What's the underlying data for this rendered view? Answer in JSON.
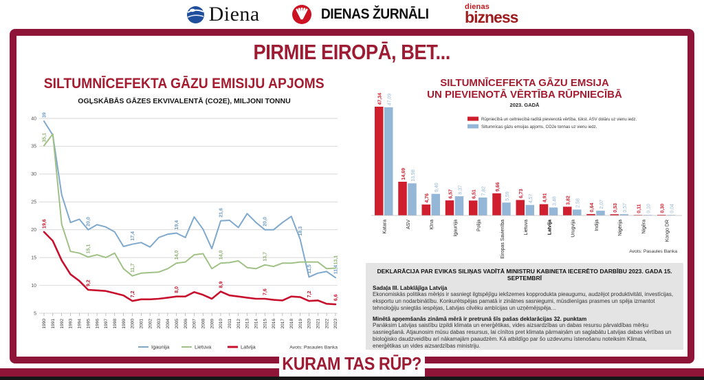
{
  "page": {
    "main_title": "PIRMIE EIROPĀ, BET...",
    "footer_title": "KURAM TAS RŪP?"
  },
  "header": {
    "diena": "Diena",
    "zurnali": "DIENAS ŽURNĀLI",
    "bizness_top": "dienas",
    "bizness_bottom": "bizness"
  },
  "declaration": {
    "heading": "DEKLARĀCIJA PAR EVIKAS SILIŅAS VADĪTĀ MINISTRU KABINETA IECERĒTO DARBĪBU 2023. GADA 15. SEPTEMBRĪ",
    "section1_title": "Sadaļa III. Labklājīga Latvija",
    "section1_body": "Ekonomiskās politikas mērķis ir sasniegt ilgtspējīgu iekšzemes kopprodukta pieaugumu, audzējot produktivitāti, investīcijas, eksportu un nodarbinātību. Konkurētspējas pamatā ir zinātnes sasniegumi, mūsdienīgas prasmes un spēja izmantot tehnoloģiju sniegtās iespējas, Latvijas cilvēku ambīcijas un uzņēmējspēja…",
    "section2_title": "Minētā apņemšanās zināmā mērā ir pretrunā šīs pašas deklarācijas 32. punktam",
    "section2_body": "Panāksim Latvijas saistību izpildi klimata un enerģētikas, vides aizsardzības un dabas resursu pārvaldības mērķu sasniegšanā. Atjaunosim mūsu dabas resursus, lai cīnītos pret klimata pārmaiņām un saglabātu Latvijas dabas vērtības un bioloģisko daudzveidību arī nākamajām paaudzēm. Kā atbildīgo par šo uzdevumu īstenošanu noteiksim Klimata, enerģētikas un vides aizsardzības ministriju."
  },
  "colors": {
    "frame": "#8e1537",
    "title_red": "#a51c30",
    "line_blue": "#7fa8cd",
    "line_green": "#a0c186",
    "line_red": "#c8102e",
    "bar_red": "#cf1f2f",
    "bar_blue": "#95b7d7",
    "grid": "#c9c9c9",
    "box_bg": "#e4e4e4",
    "black_strip": "#161616"
  },
  "chart_data": [
    {
      "type": "line",
      "title": "SILTUMNĪCEFEKTA GĀZU EMISIJU APJOMS",
      "subtitle": "OGĻSKĀBĀS GĀZES EKVIVALENTĀ (CO2E), MILJONI  TONNU",
      "source": "Avots: Pasaules Banka",
      "grid": true,
      "legend_position": "bottom",
      "ylim": [
        5,
        40
      ],
      "ytick_step": 5,
      "x": [
        1990,
        1991,
        1992,
        1993,
        1994,
        1995,
        1996,
        1997,
        1998,
        1999,
        2000,
        2001,
        2002,
        2003,
        2004,
        2005,
        2006,
        2007,
        2008,
        2009,
        2010,
        2011,
        2012,
        2013,
        2014,
        2015,
        2016,
        2017,
        2018,
        2019,
        2020,
        2021,
        2022,
        2023
      ],
      "series": [
        {
          "name": "Igaunija",
          "color": "#7fa8cd",
          "label_color": "#6d9cc4",
          "width": 2,
          "values": [
            39.5,
            37.0,
            26.3,
            21.3,
            21.9,
            20.0,
            20.9,
            20.5,
            19.6,
            17.0,
            17.4,
            17.7,
            16.9,
            18.6,
            19.2,
            19.4,
            18.6,
            22.3,
            20.1,
            16.6,
            21.6,
            21.7,
            20.4,
            22.9,
            21.3,
            20.0,
            20.0,
            21.3,
            22.4,
            18.3,
            11.5,
            12.2,
            12.5,
            11.4
          ],
          "labeled": {
            "1990": "39,5",
            "1995": "20,0",
            "2000": "17,4",
            "2005": "19,4",
            "2010": "21,6",
            "2015": "20,0",
            "2019": "18,3",
            "2020": "11,5",
            "2023": "11,4"
          }
        },
        {
          "name": "Lietuva",
          "color": "#a0c186",
          "label_color": "#8fb374",
          "width": 2,
          "values": [
            35.1,
            37.2,
            21.0,
            16.1,
            15.8,
            15.1,
            15.5,
            15.0,
            15.8,
            13.0,
            11.7,
            12.2,
            12.3,
            12.4,
            13.0,
            14.0,
            14.2,
            15.5,
            15.7,
            13.0,
            14.0,
            14.1,
            14.4,
            13.2,
            13.0,
            13.7,
            13.4,
            14.0,
            14.0,
            14.2,
            14.2,
            14.2,
            13.0,
            13.1
          ],
          "labeled": {
            "1990": "35,1",
            "1995": "15,1",
            "2000": "11,7",
            "2005": "14,0",
            "2010": "14,0",
            "2015": "13,7",
            "2023": "13,1"
          }
        },
        {
          "name": "Latvija",
          "color": "#c8102e",
          "label_color": "#c40f26",
          "width": 2.6,
          "values": [
            19.6,
            18.0,
            14.5,
            12.0,
            10.8,
            9.2,
            9.1,
            9.0,
            8.6,
            8.2,
            7.2,
            7.5,
            7.5,
            7.6,
            7.8,
            8.0,
            8.0,
            8.8,
            8.3,
            7.6,
            8.9,
            8.2,
            8.0,
            7.8,
            7.6,
            7.6,
            7.4,
            7.3,
            8.0,
            7.9,
            7.2,
            7.3,
            6.7,
            6.6
          ],
          "labeled": {
            "1990": "19,6",
            "1995": "9,2",
            "2000": "7,2",
            "2005": "8,0",
            "2010": "8,9",
            "2015": "7,6",
            "2020": "7,2",
            "2023": "6,6"
          }
        }
      ]
    },
    {
      "type": "bar",
      "title": "SILTUMNĪCEFEKTA GĀZU EMSIJA UN PIEVIENOTĀ VĒRTĪBA RŪPNIECĪBĀ",
      "title_line1": "SILTUMNĪCEFEKTA GĀZU EMSIJA",
      "title_line2": "UN PIEVIENOTĀ VĒRTĪBA RŪPNIECĪBĀ",
      "subtitle": "2023. GADĀ",
      "source": "Avots: Pasaules Banka",
      "bold_category": "Latvija",
      "categories": [
        "Katara",
        "ASV",
        "Ķīna",
        "Igaunija",
        "Polija",
        "Eiropas Savienība",
        "Lietuva",
        "Latvija",
        "Urugvija",
        "Indija",
        "Nigērija",
        "Nigēra",
        "Kongo DR"
      ],
      "series": [
        {
          "name": "Rūpniecībā un celtniecībā radītā pievienotā vērtība, tūkst. ASV dolāru uz vienu iedz.",
          "color": "#cf1f2f",
          "values": [
            47.34,
            14.69,
            4.76,
            6.57,
            6.51,
            9.66,
            6.73,
            4.91,
            3.82,
            0.64,
            0.53,
            0.11,
            0.3
          ]
        },
        {
          "name": "Siltumnīcas gāzu emsijas apjoms, CO2e tonnas  uz vienu iedz.",
          "color": "#95b7d7",
          "values": [
            47.09,
            13.98,
            9.4,
            8.37,
            7.82,
            5.59,
            4.57,
            3.48,
            2.58,
            2.07,
            0.57,
            0.1,
            0.04
          ]
        }
      ]
    }
  ]
}
